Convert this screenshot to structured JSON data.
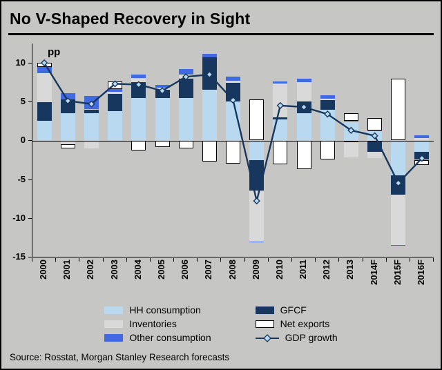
{
  "title": "No V-Shaped Recovery in Sight",
  "source": "Source: Rosstat, Morgan Stanley Research forecasts",
  "colors": {
    "background": "#c6c6c4",
    "axis": "#000000",
    "hh_consumption": "#b8d9f0",
    "inventories": "#d9d9d9",
    "other_consumption": "#4169e1",
    "gfcf": "#17375e",
    "net_exports": "#ffffff",
    "gdp_line": "#17375e",
    "marker_fill": "#b8d9f0"
  },
  "chart_data": {
    "type": "bar",
    "stacked": true,
    "title": "No V-Shaped Recovery in Sight",
    "ylabel": "pp",
    "ylim": [
      -15,
      12.5
    ],
    "yticks": [
      10,
      5,
      0,
      -5,
      -10,
      -15
    ],
    "grid": false,
    "legend_position": "bottom",
    "categories": [
      "2000",
      "2001",
      "2002",
      "2003",
      "2004",
      "2005",
      "2006",
      "2007",
      "2008",
      "2009",
      "2010",
      "2011",
      "2012",
      "2013",
      "2014F",
      "2015F",
      "2016F"
    ],
    "series": [
      {
        "name": "HH consumption",
        "color": "#b8d9f0",
        "values": [
          2.5,
          3.5,
          3.5,
          3.8,
          5.5,
          5.5,
          5.5,
          6.5,
          5.0,
          -2.5,
          2.7,
          3.5,
          4.0,
          2.4,
          1.2,
          -4.5,
          -1.5
        ]
      },
      {
        "name": "GFCF",
        "color": "#17375e",
        "values": [
          2.4,
          1.8,
          0.5,
          2.2,
          2.0,
          1.0,
          2.5,
          4.2,
          2.4,
          -4.0,
          0.3,
          1.5,
          1.2,
          -0.2,
          -1.5,
          -2.5,
          -1.0
        ]
      },
      {
        "name": "Inventories",
        "color": "#d9d9d9",
        "values": [
          3.8,
          -0.5,
          -1.0,
          0.3,
          0.5,
          0.3,
          0.5,
          0.0,
          0.3,
          -6.5,
          4.3,
          2.5,
          0.2,
          -2.0,
          -0.8,
          -6.5,
          0.3
        ]
      },
      {
        "name": "Other consumption",
        "color": "#4169e1",
        "values": [
          0.8,
          0.8,
          1.7,
          0.3,
          0.5,
          0.4,
          0.7,
          0.5,
          0.5,
          -0.1,
          0.3,
          0.5,
          0.4,
          0.1,
          0.1,
          -0.1,
          0.4
        ]
      },
      {
        "name": "Net exports",
        "color": "#ffffff",
        "border": "#000000",
        "values": [
          0.5,
          -0.5,
          0.0,
          1.0,
          -1.3,
          -0.8,
          -1.0,
          -2.7,
          -3.0,
          5.3,
          -3.1,
          -3.7,
          -2.4,
          1.0,
          1.6,
          8.0,
          -0.7
        ]
      }
    ],
    "line_series": {
      "name": "GDP growth",
      "color": "#17375e",
      "marker": "diamond",
      "marker_fill": "#b8d9f0",
      "values": [
        10.0,
        5.1,
        4.7,
        7.3,
        7.2,
        6.4,
        8.2,
        8.5,
        5.2,
        -7.8,
        4.5,
        4.3,
        3.4,
        1.3,
        0.6,
        -5.5,
        -2.3
      ]
    }
  },
  "legend": {
    "columns": 2,
    "items": [
      {
        "label": "HH consumption",
        "swatch": "rect",
        "color": "#b8d9f0"
      },
      {
        "label": "GFCF",
        "swatch": "rect",
        "color": "#17375e"
      },
      {
        "label": "Inventories",
        "swatch": "rect",
        "color": "#d9d9d9"
      },
      {
        "label": "Net exports",
        "swatch": "rect",
        "color": "#ffffff",
        "border": "#000000"
      },
      {
        "label": "Other consumption",
        "swatch": "rect",
        "color": "#4169e1"
      },
      {
        "label": "GDP growth",
        "swatch": "line-diamond",
        "color": "#17375e",
        "marker_fill": "#b8d9f0"
      }
    ]
  }
}
